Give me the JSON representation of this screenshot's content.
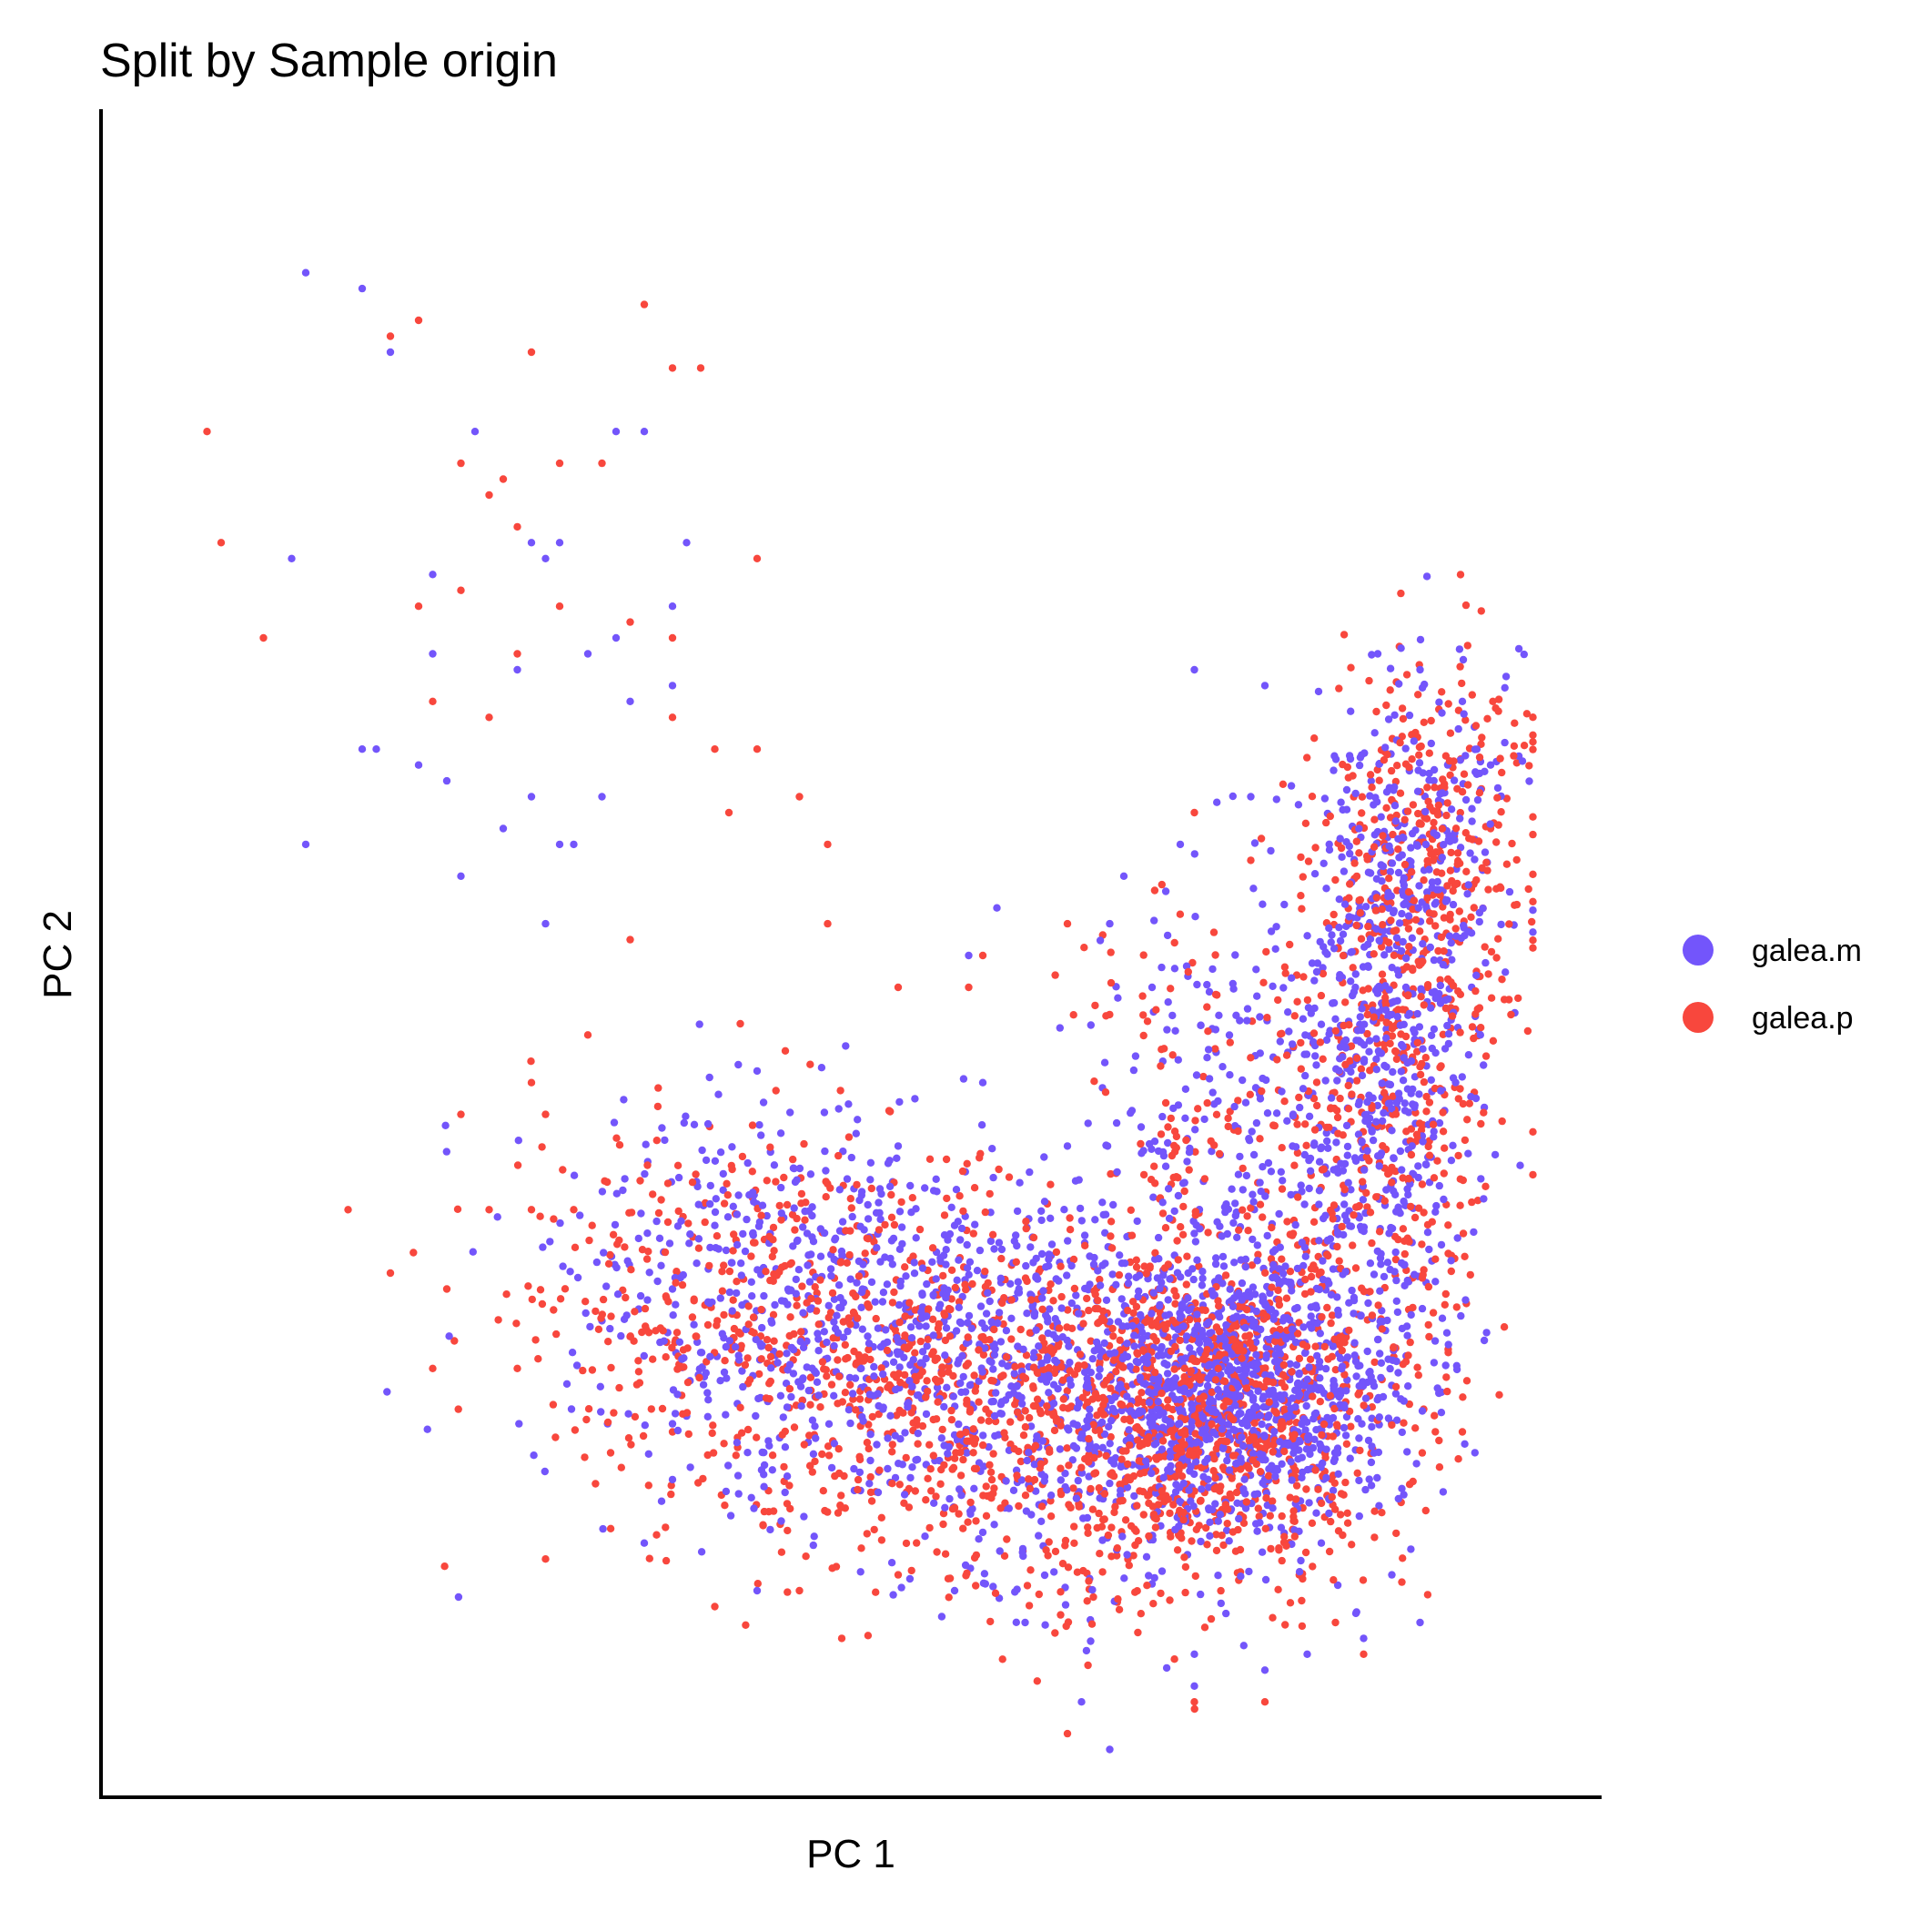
{
  "chart_data": {
    "type": "scatter",
    "title": "Split by Sample origin",
    "xlabel": "PC 1",
    "ylabel": "PC 2",
    "xlim": [
      0,
      100
    ],
    "ylim": [
      0,
      100
    ],
    "grid": false,
    "axis_ticks": false,
    "legend_position": "right",
    "series": [
      {
        "name": "galea.m",
        "color": "#7355FB",
        "points": [
          [
            16,
            93
          ],
          [
            12,
            94
          ],
          [
            18,
            89
          ],
          [
            34,
            84
          ],
          [
            36,
            84
          ],
          [
            24,
            84
          ],
          [
            11,
            76
          ],
          [
            21,
            75
          ],
          [
            28,
            77
          ],
          [
            30,
            77
          ],
          [
            39,
            77
          ],
          [
            29,
            76
          ],
          [
            38,
            73
          ],
          [
            21,
            70
          ],
          [
            34,
            71
          ],
          [
            32,
            70
          ],
          [
            27,
            69
          ],
          [
            35,
            67
          ],
          [
            38,
            68
          ],
          [
            16,
            64
          ],
          [
            17,
            64
          ],
          [
            20,
            63
          ],
          [
            22,
            62
          ],
          [
            28,
            61
          ],
          [
            33,
            61
          ],
          [
            12,
            58
          ],
          [
            26,
            59
          ],
          [
            23,
            56
          ],
          [
            31,
            58
          ],
          [
            30,
            58
          ],
          [
            29,
            53
          ],
          [
            60,
            43
          ],
          [
            75,
            69
          ],
          [
            80,
            68
          ],
          [
            88,
            70
          ],
          [
            91,
            69
          ],
          [
            94,
            67
          ],
          [
            96,
            63
          ],
          [
            79,
            61
          ],
          [
            74,
            58
          ],
          [
            70,
            56
          ],
          [
            69,
            53
          ],
          [
            61,
            54
          ],
          [
            59,
            51
          ],
          [
            72,
            49
          ],
          [
            86,
            53
          ],
          [
            90,
            49
          ],
          [
            85,
            47
          ],
          [
            77,
            44
          ],
          [
            82,
            41
          ],
          [
            66,
            39
          ],
          [
            54,
            39
          ],
          [
            58,
            34
          ],
          [
            41,
            34
          ],
          [
            38,
            30
          ],
          [
            40,
            26
          ],
          [
            39,
            22
          ],
          [
            38,
            18
          ],
          [
            33,
            28
          ],
          [
            45,
            28
          ],
          [
            48,
            33
          ],
          [
            36,
            14
          ],
          [
            44,
            11
          ],
          [
            58,
            11
          ],
          [
            63,
            9
          ],
          [
            75,
            7
          ],
          [
            80,
            6
          ],
          [
            83,
            7
          ],
          [
            87,
            8
          ],
          [
            91,
            9
          ],
          [
            89,
            12
          ],
          [
            84,
            14
          ],
          [
            75,
            5
          ],
          [
            69,
            1
          ],
          [
            67,
            4
          ]
        ],
        "clusters": [
          {
            "cx": 78,
            "cy": 24,
            "sx": 5.5,
            "sy": 4.2,
            "n": 950
          },
          {
            "cx": 62,
            "cy": 26,
            "sx": 10,
            "sy": 5.5,
            "n": 650
          },
          {
            "cx": 45,
            "cy": 30,
            "sx": 8.5,
            "sy": 6.5,
            "n": 420
          },
          {
            "cx": 88,
            "cy": 42,
            "sx": 3.2,
            "sy": 10,
            "n": 520
          },
          {
            "cx": 91,
            "cy": 57,
            "sx": 3.2,
            "sy": 6.5,
            "n": 260
          },
          {
            "cx": 78,
            "cy": 43,
            "sx": 4.5,
            "sy": 7,
            "n": 180
          },
          {
            "cx": 70,
            "cy": 17,
            "sx": 9,
            "sy": 4.5,
            "n": 170
          }
        ]
      },
      {
        "name": "galea.p",
        "color": "#F8473D",
        "points": [
          [
            5,
            84
          ],
          [
            6,
            77
          ],
          [
            9,
            71
          ],
          [
            20,
            91
          ],
          [
            18,
            90
          ],
          [
            28,
            89
          ],
          [
            36,
            92
          ],
          [
            38,
            88
          ],
          [
            40,
            88
          ],
          [
            23,
            82
          ],
          [
            26,
            81
          ],
          [
            30,
            82
          ],
          [
            33,
            82
          ],
          [
            25,
            80
          ],
          [
            27,
            78
          ],
          [
            44,
            76
          ],
          [
            20,
            73
          ],
          [
            23,
            74
          ],
          [
            30,
            73
          ],
          [
            35,
            72
          ],
          [
            38,
            71
          ],
          [
            21,
            67
          ],
          [
            25,
            66
          ],
          [
            27,
            70
          ],
          [
            38,
            66
          ],
          [
            41,
            64
          ],
          [
            44,
            64
          ],
          [
            47,
            61
          ],
          [
            49,
            58
          ],
          [
            42,
            60
          ],
          [
            49,
            53
          ],
          [
            35,
            52
          ],
          [
            32,
            46
          ],
          [
            28,
            43
          ],
          [
            29,
            41
          ],
          [
            23,
            41
          ],
          [
            25,
            35
          ],
          [
            22,
            30
          ],
          [
            21,
            25
          ],
          [
            27,
            25
          ],
          [
            31,
            35
          ],
          [
            46,
            45
          ],
          [
            54,
            49
          ],
          [
            59,
            49
          ],
          [
            60,
            51
          ],
          [
            66,
            53
          ],
          [
            75,
            60
          ],
          [
            79,
            57
          ],
          [
            84,
            50
          ],
          [
            91,
            44
          ],
          [
            92,
            37
          ],
          [
            96,
            59
          ],
          [
            95,
            50
          ],
          [
            93,
            26
          ],
          [
            94,
            21
          ],
          [
            87,
            7
          ],
          [
            85,
            9
          ],
          [
            80,
            4
          ],
          [
            75,
            4
          ],
          [
            66,
            2
          ],
          [
            54,
            12
          ],
          [
            50,
            8
          ],
          [
            47,
            11
          ],
          [
            41,
            10
          ],
          [
            29,
            13
          ],
          [
            38,
            21
          ],
          [
            18,
            31
          ],
          [
            28,
            35
          ],
          [
            15,
            35
          ],
          [
            35,
            27
          ]
        ],
        "clusters": [
          {
            "cx": 77,
            "cy": 23,
            "sx": 6,
            "sy": 4.6,
            "n": 760
          },
          {
            "cx": 60,
            "cy": 24,
            "sx": 10,
            "sy": 5.5,
            "n": 620
          },
          {
            "cx": 44,
            "cy": 28,
            "sx": 8.5,
            "sy": 6.5,
            "n": 380
          },
          {
            "cx": 89,
            "cy": 44,
            "sx": 3.8,
            "sy": 10,
            "n": 480
          },
          {
            "cx": 92,
            "cy": 58,
            "sx": 3.6,
            "sy": 6.5,
            "n": 240
          },
          {
            "cx": 76,
            "cy": 40,
            "sx": 5,
            "sy": 7,
            "n": 140
          },
          {
            "cx": 68,
            "cy": 15,
            "sx": 9,
            "sy": 4.5,
            "n": 170
          }
        ]
      }
    ]
  }
}
